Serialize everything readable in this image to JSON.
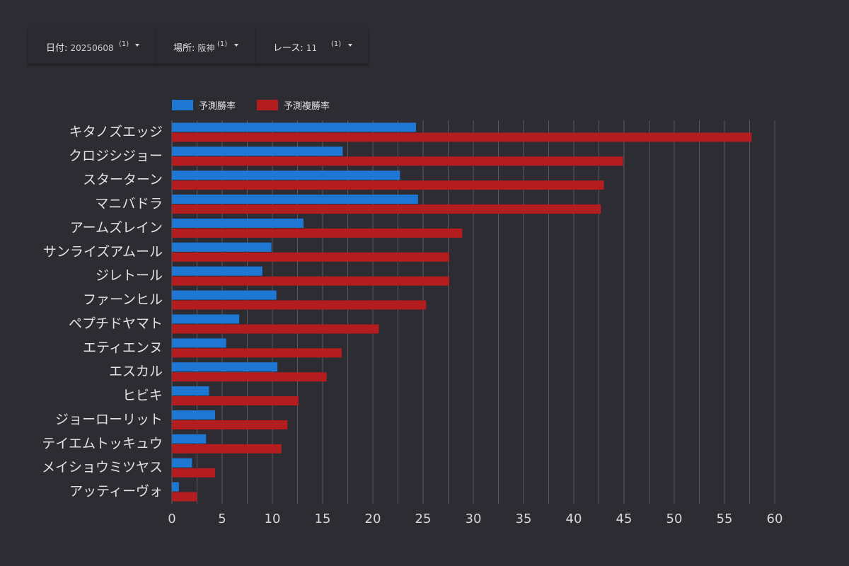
{
  "filters": [
    {
      "name": "日付",
      "value": "20250608",
      "count": "(1)"
    },
    {
      "name": "場所",
      "value": "阪神",
      "count": "(1)"
    },
    {
      "name": "レース",
      "value": "11",
      "count": "(1)"
    }
  ],
  "colors": {
    "background": "#2d2c33",
    "win": "#1f77d4",
    "place": "#b31d1f",
    "grid": "#5a5960",
    "text": "#d6d6d8"
  },
  "chart_data": {
    "type": "bar",
    "orientation": "horizontal",
    "categories": [
      "キタノズエッジ",
      "クロジシジョー",
      "スターターン",
      "マニバドラ",
      "アームズレイン",
      "サンライズアムール",
      "ジレトール",
      "ファーンヒル",
      "ペプチドヤマト",
      "エティエンヌ",
      "エスカル",
      "ヒビキ",
      "ジョーローリット",
      "テイエムトッキュウ",
      "メイショウミツヤス",
      "アッティーヴォ"
    ],
    "series": [
      {
        "name": "予測勝率",
        "color": "#1f77d4",
        "values": [
          24.3,
          17.0,
          22.7,
          24.5,
          13.1,
          9.9,
          9.0,
          10.4,
          6.7,
          5.4,
          10.5,
          3.7,
          4.3,
          3.4,
          2.0,
          0.7
        ]
      },
      {
        "name": "予測複勝率",
        "color": "#b31d1f",
        "values": [
          57.7,
          44.9,
          43.0,
          42.7,
          28.9,
          27.6,
          27.6,
          25.3,
          20.6,
          16.9,
          15.4,
          12.6,
          11.5,
          10.9,
          4.3,
          2.5
        ]
      }
    ],
    "xlim": [
      0,
      60
    ],
    "xticks": [
      "0",
      "5",
      "10",
      "15",
      "20",
      "25",
      "30",
      "35",
      "40",
      "45",
      "50",
      "55",
      "60"
    ],
    "legend_position": "top-left",
    "grid": "vertical"
  }
}
